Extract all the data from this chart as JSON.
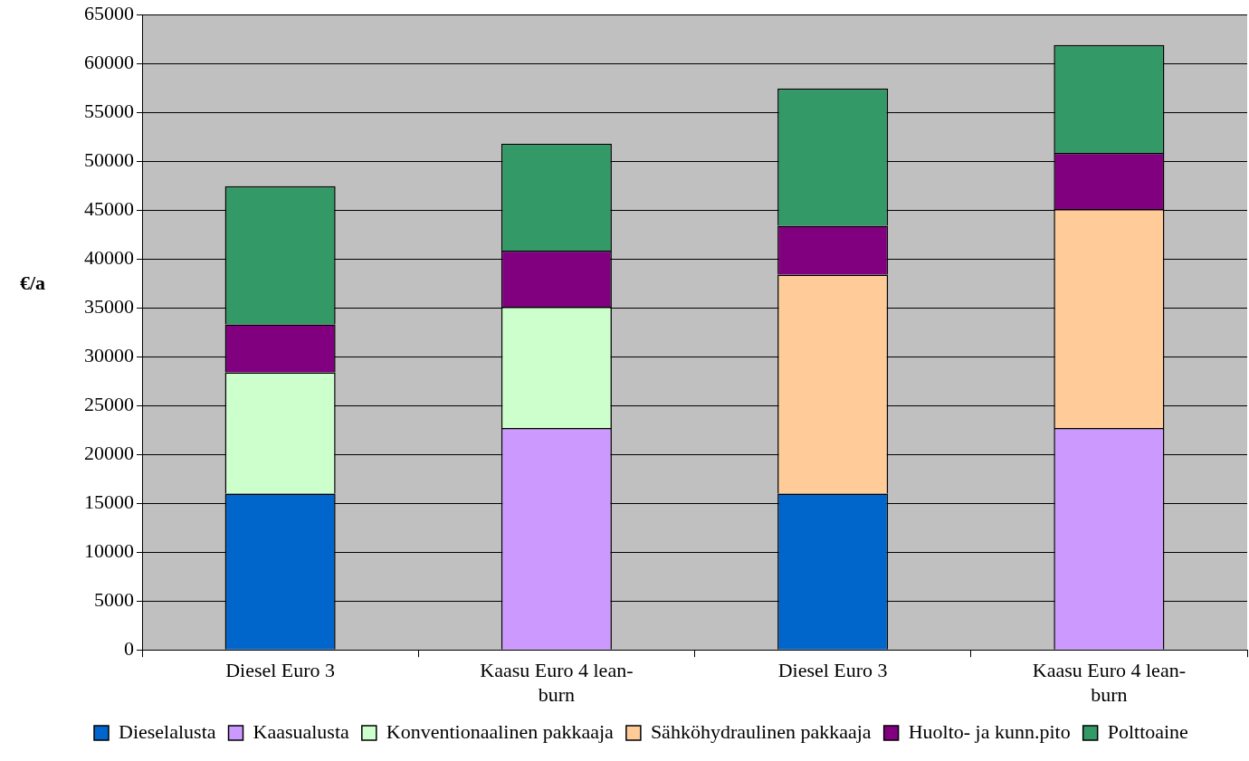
{
  "chart_data": {
    "type": "bar",
    "stacked": true,
    "ylabel": "€/a",
    "categories": [
      "Diesel Euro 3",
      "Kaasu Euro 4 lean-burn",
      "Diesel Euro 3",
      "Kaasu Euro 4 lean-burn"
    ],
    "series": [
      {
        "name": "Dieselalusta",
        "color": "#0066cc",
        "values": [
          16000,
          null,
          16000,
          null
        ]
      },
      {
        "name": "Kaasualusta",
        "color": "#cc99ff",
        "values": [
          null,
          22700,
          null,
          22700
        ]
      },
      {
        "name": "Konventionaalinen pakkaaja",
        "color": "#ccffcc",
        "values": [
          12400,
          12400,
          null,
          null
        ]
      },
      {
        "name": "Sähköhydraulinen pakkaaja",
        "color": "#ffcc99",
        "values": [
          null,
          null,
          22400,
          22400
        ]
      },
      {
        "name": "Huolto- ja kunn.pito",
        "color": "#800080",
        "values": [
          4900,
          5750,
          5000,
          5750
        ]
      },
      {
        "name": "Polttoaine",
        "color": "#339966",
        "values": [
          14150,
          10950,
          14050,
          11050
        ]
      }
    ],
    "ylim": [
      0,
      65000
    ],
    "yticks": [
      0,
      5000,
      10000,
      15000,
      20000,
      25000,
      30000,
      35000,
      40000,
      45000,
      50000,
      55000,
      60000,
      65000
    ],
    "grid": "y",
    "legend": "bottom"
  }
}
